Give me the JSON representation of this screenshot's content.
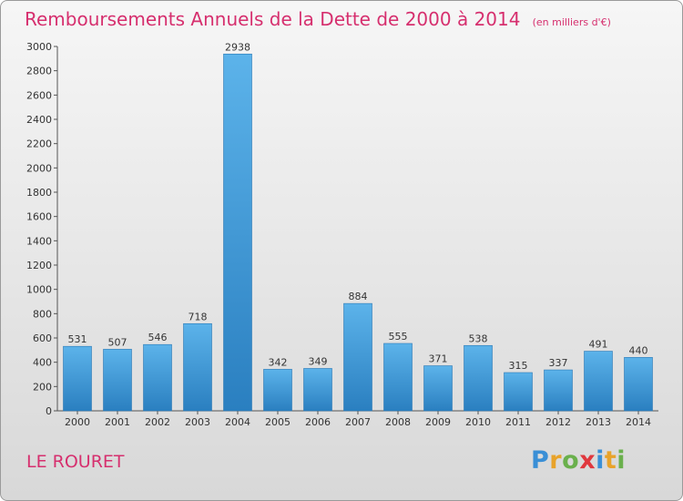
{
  "header": {
    "title": "Remboursements Annuels de la Dette de 2000 à 2014",
    "unit": "(en milliers d'€)"
  },
  "footer": {
    "commune": "LE ROURET",
    "logo_letters": [
      "P",
      "r",
      "o",
      "x",
      "i",
      "t",
      "i"
    ],
    "logo_colors": [
      "#3a8fd6",
      "#e8a32a",
      "#6ab04c",
      "#e0383e",
      "#3a8fd6",
      "#e8a32a",
      "#6ab04c"
    ]
  },
  "colors": {
    "title": "#d62f6e",
    "bar_light": "#5cb3ea",
    "bar_dark": "#2a7fc0"
  },
  "chart_data": {
    "type": "bar",
    "title": "Remboursements Annuels de la Dette de 2000 à 2014",
    "ylabel": "",
    "xlabel": "",
    "categories": [
      "2000",
      "2001",
      "2002",
      "2003",
      "2004",
      "2005",
      "2006",
      "2007",
      "2008",
      "2009",
      "2010",
      "2011",
      "2012",
      "2013",
      "2014"
    ],
    "values": [
      531,
      507,
      546,
      718,
      2938,
      342,
      349,
      884,
      555,
      371,
      538,
      315,
      337,
      491,
      440
    ],
    "ylim": [
      0,
      3000
    ],
    "yticks": [
      0,
      200,
      400,
      600,
      800,
      1000,
      1200,
      1400,
      1600,
      1800,
      2000,
      2200,
      2400,
      2600,
      2800,
      3000
    ],
    "grid": false,
    "legend": "none"
  }
}
